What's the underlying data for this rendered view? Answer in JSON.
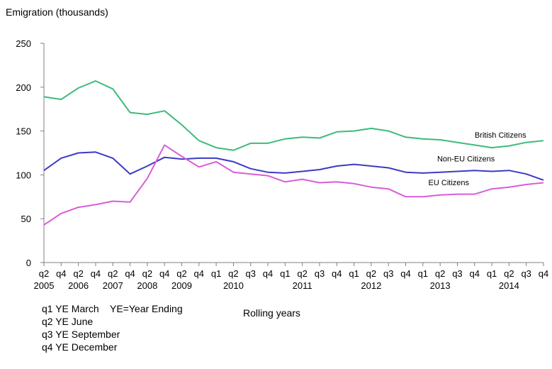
{
  "chart_data": {
    "type": "line",
    "ylabel": "Emigration (thousands)",
    "xlabel": "Rolling years",
    "ylim": [
      0,
      250
    ],
    "y_ticks": [
      0,
      50,
      100,
      150,
      200,
      250
    ],
    "grid": false,
    "x": [
      "q2 2005",
      "q4 2005",
      "q2 2006",
      "q4 2006",
      "q2 2007",
      "q4 2007",
      "q2 2008",
      "q4 2008",
      "q2 2009",
      "q4 2009",
      "q1 2010",
      "q2 2010",
      "q3 2010",
      "q4 2010",
      "q1 2011",
      "q2 2011",
      "q3 2011",
      "q4 2011",
      "q1 2012",
      "q2 2012",
      "q3 2012",
      "q4 2012",
      "q1 2013",
      "q2 2013",
      "q3 2013",
      "q4 2013",
      "q1 2014",
      "q2 2014",
      "q3 2014",
      "q4 2014"
    ],
    "tick_labels": [
      "q2",
      "q4",
      "q2",
      "q4",
      "q2",
      "q4",
      "q2",
      "q4",
      "q2",
      "q4",
      "q1",
      "q2",
      "q3",
      "q4",
      "q1",
      "q2",
      "q3",
      "q4",
      "q1",
      "q2",
      "q3",
      "q4",
      "q1",
      "q2",
      "q3",
      "q4",
      "q1",
      "q2",
      "q3",
      "q4"
    ],
    "year_labels": [
      {
        "label": "2005",
        "index": 0
      },
      {
        "label": "2006",
        "index": 2
      },
      {
        "label": "2007",
        "index": 4
      },
      {
        "label": "2008",
        "index": 6
      },
      {
        "label": "2009",
        "index": 8
      },
      {
        "label": "2010",
        "index": 11
      },
      {
        "label": "2011",
        "index": 15
      },
      {
        "label": "2012",
        "index": 19
      },
      {
        "label": "2013",
        "index": 23
      },
      {
        "label": "2014",
        "index": 27
      }
    ],
    "series": [
      {
        "name": "British Citizens",
        "color": "#3dbb7c",
        "label_at": 26,
        "values": [
          189,
          186,
          199,
          207,
          198,
          171,
          169,
          173,
          157,
          139,
          131,
          128,
          136,
          136,
          141,
          143,
          142,
          149,
          150,
          153,
          150,
          143,
          141,
          140,
          137,
          134,
          131,
          133,
          137,
          139
        ]
      },
      {
        "name": "Non-EU Citizens",
        "color": "#3b3bc4",
        "label_at": 24,
        "values": [
          105,
          119,
          125,
          126,
          119,
          101,
          110,
          120,
          118,
          119,
          119,
          115,
          107,
          103,
          102,
          104,
          106,
          110,
          112,
          110,
          108,
          103,
          102,
          103,
          104,
          105,
          104,
          105,
          101,
          94
        ]
      },
      {
        "name": "EU Citizens",
        "color": "#d95cd9",
        "label_at": 23,
        "values": [
          43,
          56,
          63,
          66,
          70,
          69,
          96,
          134,
          121,
          109,
          115,
          103,
          101,
          99,
          92,
          95,
          91,
          92,
          90,
          86,
          84,
          75,
          75,
          77,
          78,
          78,
          84,
          86,
          89,
          91
        ]
      }
    ]
  },
  "notes": {
    "q1": {
      "abbrev": "q1",
      "text": "YE March"
    },
    "ye_def": "YE=Year Ending",
    "q2": {
      "abbrev": "q2",
      "text": "YE June"
    },
    "q3": {
      "abbrev": "q3",
      "text": "YE September"
    },
    "q4": {
      "abbrev": "q4",
      "text": "YE December"
    }
  }
}
